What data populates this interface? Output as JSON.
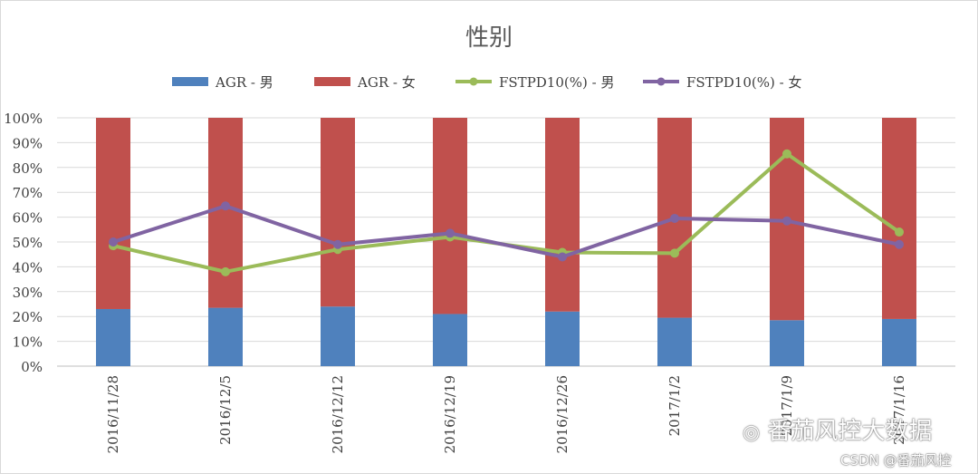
{
  "chart_data": {
    "type": "bar",
    "title": "性别",
    "categories": [
      "2016/11/28",
      "2016/12/5",
      "2016/12/12",
      "2016/12/19",
      "2016/12/26",
      "2017/1/2",
      "2017/1/9",
      "2017/1/16"
    ],
    "ylim": [
      0,
      100
    ],
    "y_ticks": [
      "0%",
      "10%",
      "20%",
      "30%",
      "40%",
      "50%",
      "60%",
      "70%",
      "80%",
      "90%",
      "100%"
    ],
    "grid": true,
    "legend_position": "top",
    "series": [
      {
        "name": "AGR - 男",
        "kind": "stacked-bar",
        "color": "#4f81bd",
        "values": [
          23,
          23.5,
          24,
          21,
          22,
          19.5,
          18.5,
          19
        ]
      },
      {
        "name": "AGR - 女",
        "kind": "stacked-bar",
        "color": "#c0504d",
        "values": [
          77,
          76.5,
          76,
          79,
          78,
          80.5,
          81.5,
          81
        ]
      },
      {
        "name": "FSTPD10(%) - 男",
        "kind": "line",
        "color": "#9bbb59",
        "values": [
          48.5,
          38,
          47,
          52,
          45.8,
          45.5,
          85.5,
          54
        ]
      },
      {
        "name": "FSTPD10(%) - 女",
        "kind": "line",
        "color": "#8064a2",
        "values": [
          50,
          64.5,
          49,
          53.5,
          44,
          59.5,
          58.5,
          49
        ]
      }
    ]
  },
  "watermark": {
    "main": "番茄风控大数据",
    "sub": "CSDN @番茄风控",
    "icon": "wechat-icon"
  }
}
